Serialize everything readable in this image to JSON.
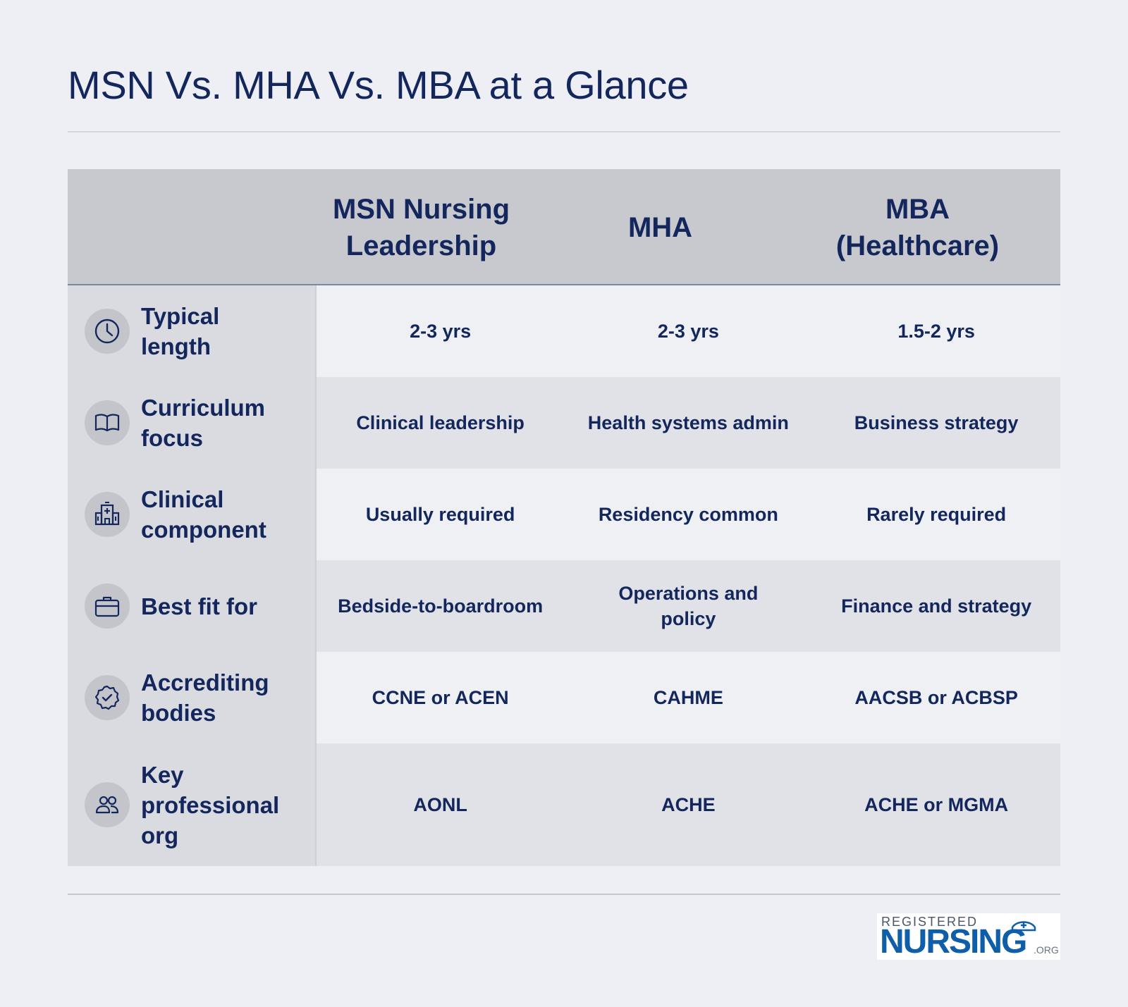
{
  "title": "MSN Vs. MHA Vs. MBA at a Glance",
  "columns": [
    "MSN Nursing Leadership",
    "MHA",
    "MBA (Healthcare)"
  ],
  "rows": [
    {
      "label": "Typical length",
      "icon": "clock-icon",
      "values": [
        "2-3 yrs",
        "2-3 yrs",
        "1.5-2 yrs"
      ]
    },
    {
      "label": "Curriculum focus",
      "icon": "book-icon",
      "values": [
        "Clinical leadership",
        "Health systems admin",
        "Business strategy"
      ]
    },
    {
      "label": "Clinical component",
      "icon": "hospital-icon",
      "values": [
        "Usually required",
        "Residency common",
        "Rarely required"
      ]
    },
    {
      "label": "Best fit for",
      "icon": "briefcase-icon",
      "values": [
        "Bedside-to-boardroom",
        "Operations and policy",
        "Finance and strategy"
      ]
    },
    {
      "label": "Accrediting bodies",
      "icon": "badge-check-icon",
      "values": [
        "CCNE or ACEN",
        "CAHME",
        "AACSB or ACBSP"
      ]
    },
    {
      "label": "Key professional org",
      "icon": "people-icon",
      "values": [
        "AONL",
        "ACHE",
        "ACHE or MGMA"
      ]
    }
  ],
  "logo": {
    "top": "REGISTERED",
    "main": "NURSING",
    "suffix": ".ORG"
  },
  "colors": {
    "navy": "#14275c",
    "background": "#eeeff4",
    "header": "#c8c9ce",
    "logo_blue": "#0e5ea9"
  }
}
